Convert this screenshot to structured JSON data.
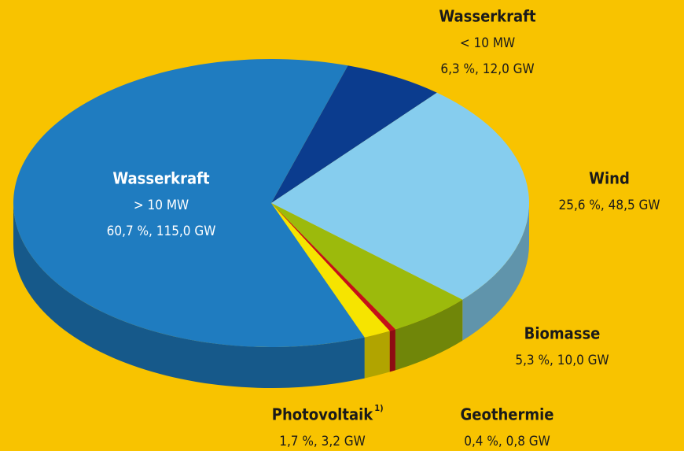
{
  "chart_data": {
    "type": "pie",
    "categories": [
      "Wasserkraft",
      "Wind",
      "Biomasse",
      "Geothermie",
      "Photovoltaik",
      "Wasserkraft"
    ],
    "sizes": [
      "< 10 MW",
      null,
      null,
      null,
      null,
      "> 10 MW"
    ],
    "footnote_marks": [
      null,
      null,
      null,
      null,
      "1)",
      null
    ],
    "values": [
      6.3,
      25.6,
      5.3,
      0.4,
      1.7,
      60.7
    ],
    "value_labels": [
      "6,3 %, 12,0 GW",
      "25,6 %,  48,5 GW",
      "5,3 %, 10,0 GW",
      "0,4 %,  0,8 GW",
      "1,7 %, 3,2 GW",
      "60,7 %, 115,0 GW"
    ],
    "colors": [
      "#0b3c8e",
      "#86cdee",
      "#9cba0c",
      "#c4101a",
      "#f6e400",
      "#1f7cc0"
    ]
  }
}
